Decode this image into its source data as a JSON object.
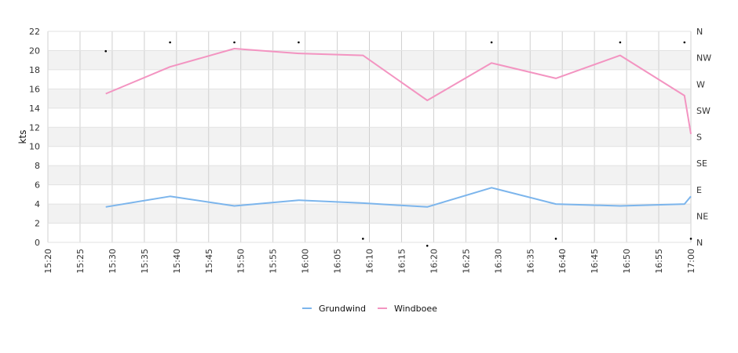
{
  "chart_data": {
    "type": "line",
    "ylabel": "kts",
    "ylim": [
      0,
      22
    ],
    "y_ticks": [
      "0",
      "2",
      "4",
      "6",
      "8",
      "10",
      "12",
      "14",
      "16",
      "18",
      "20",
      "22"
    ],
    "x_ticks": [
      "15:20",
      "15:25",
      "15:30",
      "15:35",
      "15:40",
      "15:45",
      "15:50",
      "15:55",
      "16:00",
      "16:05",
      "16:10",
      "16:15",
      "16:20",
      "16:25",
      "16:30",
      "16:35",
      "16:40",
      "16:45",
      "16:50",
      "16:55",
      "17:00"
    ],
    "xlim": [
      "15:20",
      "17:00"
    ],
    "right_axis": {
      "labels": [
        "N",
        "NE",
        "E",
        "SE",
        "S",
        "SW",
        "W",
        "NW",
        "N"
      ],
      "range_degrees": [
        0,
        360
      ]
    },
    "grid": true,
    "legend_position": "bottom-center",
    "series": [
      {
        "name": "Grundwind",
        "color": "#7cb5ec",
        "x": [
          "15:29",
          "15:39",
          "15:49",
          "15:59",
          "16:09",
          "16:19",
          "16:29",
          "16:39",
          "16:49",
          "16:59",
          "17:00"
        ],
        "values": [
          3.7,
          4.8,
          3.8,
          4.4,
          4.1,
          3.7,
          5.7,
          4.0,
          3.8,
          4.0,
          4.8
        ]
      },
      {
        "name": "Windboee",
        "color": "#f394c1",
        "x": [
          "15:29",
          "15:39",
          "15:49",
          "15:59",
          "16:09",
          "16:19",
          "16:29",
          "16:39",
          "16:49",
          "16:59",
          "17:00"
        ],
        "values": [
          15.5,
          18.3,
          20.2,
          19.7,
          19.5,
          14.8,
          18.7,
          17.1,
          19.5,
          15.3,
          11.3
        ]
      }
    ],
    "direction_points": {
      "x": [
        "15:29",
        "15:39",
        "15:49",
        "15:59",
        "16:09",
        "16:19",
        "16:29",
        "16:39",
        "16:49",
        "16:59",
        "17:00"
      ],
      "degrees": [
        345,
        360,
        360,
        360,
        25,
        13,
        360,
        25,
        360,
        360,
        25
      ]
    }
  }
}
